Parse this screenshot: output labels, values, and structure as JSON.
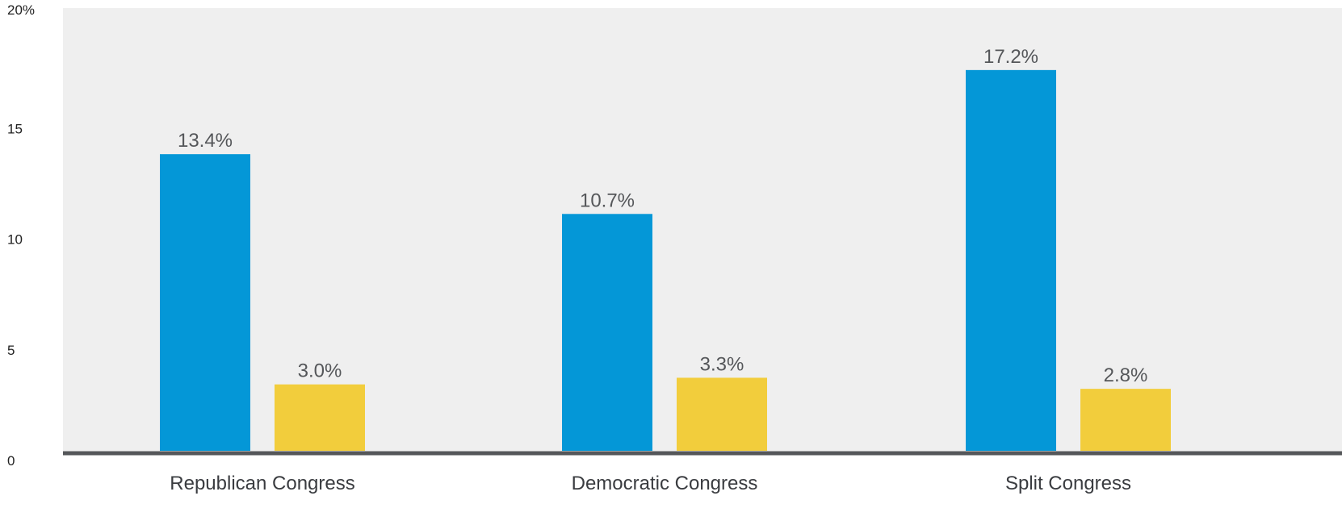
{
  "chart_data": {
    "type": "bar",
    "categories": [
      "Republican Congress",
      "Democratic Congress",
      "Split Congress"
    ],
    "series": [
      {
        "values": [
          13.4,
          10.7,
          17.2
        ],
        "labels": [
          "13.4%",
          "10.7%",
          "17.2%"
        ],
        "color": "#0497d7"
      },
      {
        "values": [
          3.0,
          3.3,
          2.8
        ],
        "labels": [
          "3.0%",
          "3.3%",
          "2.8%"
        ],
        "color": "#f2cd3c"
      }
    ],
    "ylim": [
      0,
      20
    ],
    "yticks": [
      "0",
      "5",
      "10",
      "15",
      "20%"
    ],
    "ytick_values": [
      0,
      5,
      10,
      15,
      20
    ],
    "title": "",
    "xlabel": "",
    "ylabel": "",
    "grid": false,
    "plot_background": "#efefef",
    "axis_color": "#55575a"
  }
}
